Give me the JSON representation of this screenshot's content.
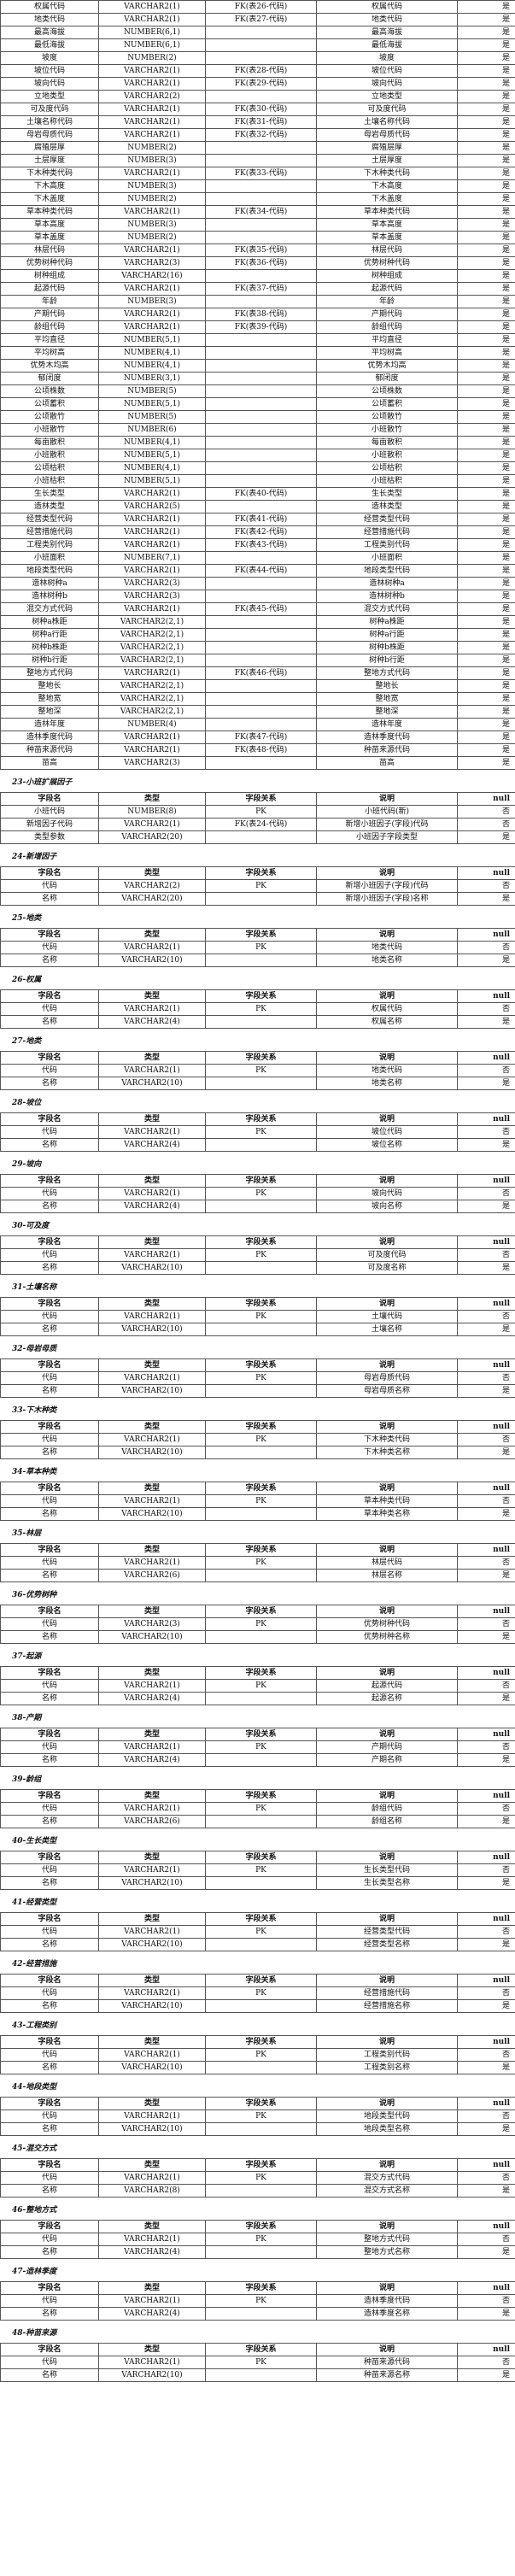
{
  "main_table": {
    "rows": [
      [
        "权属代码",
        "VARCHAR2(1)",
        "FK(表26-代码)",
        "权属代码",
        "是"
      ],
      [
        "地类代码",
        "VARCHAR2(1)",
        "FK(表27-代码)",
        "地类代码",
        "是"
      ],
      [
        "最高海拔",
        "NUMBER(6,1)",
        "",
        "最高海拔",
        "是"
      ],
      [
        "最低海拔",
        "NUMBER(6,1)",
        "",
        "最低海拔",
        "是"
      ],
      [
        "坡度",
        "NUMBER(2)",
        "",
        "坡度",
        "是"
      ],
      [
        "坡位代码",
        "VARCHAR2(1)",
        "FK(表28-代码)",
        "坡位代码",
        "是"
      ],
      [
        "坡向代码",
        "VARCHAR2(1)",
        "FK(表29-代码)",
        "坡向代码",
        "是"
      ],
      [
        "立地类型",
        "VARCHAR2(2)",
        "",
        "立地类型",
        "是"
      ],
      [
        "可及度代码",
        "VARCHAR2(1)",
        "FK(表30-代码)",
        "可及度代码",
        "是"
      ],
      [
        "土壤名称代码",
        "VARCHAR2(1)",
        "FK(表31-代码)",
        "土壤名称代码",
        "是"
      ],
      [
        "母岩母质代码",
        "VARCHAR2(1)",
        "FK(表32-代码)",
        "母岩母质代码",
        "是"
      ],
      [
        "腐殖层厚",
        "NUMBER(2)",
        "",
        "腐殖层厚",
        "是"
      ],
      [
        "土层厚度",
        "NUMBER(3)",
        "",
        "土层厚度",
        "是"
      ],
      [
        "下木种类代码",
        "VARCHAR2(1)",
        "FK(表33-代码)",
        "下木种类代码",
        "是"
      ],
      [
        "下木高度",
        "NUMBER(3)",
        "",
        "下木高度",
        "是"
      ],
      [
        "下木盖度",
        "NUMBER(2)",
        "",
        "下木盖度",
        "是"
      ],
      [
        "草本种类代码",
        "VARCHAR2(1)",
        "FK(表34-代码)",
        "草本种类代码",
        "是"
      ],
      [
        "草本高度",
        "NUMBER(3)",
        "",
        "草本高度",
        "是"
      ],
      [
        "草本盖度",
        "NUMBER(2)",
        "",
        "草本盖度",
        "是"
      ],
      [
        "林层代码",
        "VARCHAR2(1)",
        "FK(表35-代码)",
        "林层代码",
        "是"
      ],
      [
        "优势树种代码",
        "VARCHAR2(3)",
        "FK(表36-代码)",
        "优势树种代码",
        "是"
      ],
      [
        "树种组成",
        "VARCHAR2(16)",
        "",
        "树种组成",
        "是"
      ],
      [
        "起源代码",
        "VARCHAR2(1)",
        "FK(表37-代码)",
        "起源代码",
        "是"
      ],
      [
        "年龄",
        "NUMBER(3)",
        "",
        "年龄",
        "是"
      ],
      [
        "产期代码",
        "VARCHAR2(1)",
        "FK(表38-代码)",
        "产期代码",
        "是"
      ],
      [
        "龄组代码",
        "VARCHAR2(1)",
        "FK(表39-代码)",
        "龄组代码",
        "是"
      ],
      [
        "平均直径",
        "NUMBER(5,1)",
        "",
        "平均直径",
        "是"
      ],
      [
        "平均树高",
        "NUMBER(4,1)",
        "",
        "平均树高",
        "是"
      ],
      [
        "优势木均高",
        "NUMBER(4,1)",
        "",
        "优势木均高",
        "是"
      ],
      [
        "郁闭度",
        "NUMBER(3,1)",
        "",
        "郁闭度",
        "是"
      ],
      [
        "公顷株数",
        "NUMBER(5)",
        "",
        "公顷株数",
        "是"
      ],
      [
        "公顷蓄积",
        "NUMBER(5,1)",
        "",
        "公顷蓄积",
        "是"
      ],
      [
        "公顷散竹",
        "NUMBER(5)",
        "",
        "公顷散竹",
        "是"
      ],
      [
        "小班散竹",
        "NUMBER(6)",
        "",
        "小班散竹",
        "是"
      ],
      [
        "每亩散积",
        "NUMBER(4,1)",
        "",
        "每亩散积",
        "是"
      ],
      [
        "小班散积",
        "NUMBER(5,1)",
        "",
        "小班散积",
        "是"
      ],
      [
        "公顷枯积",
        "NUMBER(4,1)",
        "",
        "公顷枯积",
        "是"
      ],
      [
        "小班枯积",
        "NUMBER(5,1)",
        "",
        "小班枯积",
        "是"
      ],
      [
        "生长类型",
        "VARCHAR2(1)",
        "FK(表40-代码)",
        "生长类型",
        "是"
      ],
      [
        "造林类型",
        "VARCHAR2(5)",
        "",
        "造林类型",
        "是"
      ],
      [
        "经营类型代码",
        "VARCHAR2(1)",
        "FK(表41-代码)",
        "经营类型代码",
        "是"
      ],
      [
        "经营措施代码",
        "VARCHAR2(1)",
        "FK(表42-代码)",
        "经营措施代码",
        "是"
      ],
      [
        "工程类别代码",
        "VARCHAR2(1)",
        "FK(表43-代码)",
        "工程类别代码",
        "是"
      ],
      [
        "小班面积",
        "NUMBER(7,1)",
        "",
        "小班面积",
        "是"
      ],
      [
        "地段类型代码",
        "VARCHAR2(1)",
        "FK(表44-代码)",
        "地段类型代码",
        "是"
      ],
      [
        "造林树种a",
        "VARCHAR2(3)",
        "",
        "造林树种a",
        "是"
      ],
      [
        "造林树种b",
        "VARCHAR2(3)",
        "",
        "造林树种b",
        "是"
      ],
      [
        "混交方式代码",
        "VARCHAR2(1)",
        "FK(表45-代码)",
        "混交方式代码",
        "是"
      ],
      [
        "树种a株距",
        "VARCHAR2(2,1)",
        "",
        "树种a株距",
        "是"
      ],
      [
        "树种a行距",
        "VARCHAR2(2,1)",
        "",
        "树种a行距",
        "是"
      ],
      [
        "树种b株距",
        "VARCHAR2(2,1)",
        "",
        "树种b株距",
        "是"
      ],
      [
        "树种b行距",
        "VARCHAR2(2,1)",
        "",
        "树种b行距",
        "是"
      ],
      [
        "整地方式代码",
        "VARCHAR2(1)",
        "FK(表46-代码)",
        "整地方式代码",
        "是"
      ],
      [
        "整地长",
        "VARCHAR2(2,1)",
        "",
        "整地长",
        "是"
      ],
      [
        "整地宽",
        "VARCHAR2(2,1)",
        "",
        "整地宽",
        "是"
      ],
      [
        "整地深",
        "VARCHAR2(2,1)",
        "",
        "整地深",
        "是"
      ],
      [
        "造林年度",
        "NUMBER(4)",
        "",
        "造林年度",
        "是"
      ],
      [
        "造林季度代码",
        "VARCHAR2(1)",
        "FK(表47-代码)",
        "造林季度代码",
        "是"
      ],
      [
        "种苗来源代码",
        "VARCHAR2(1)",
        "FK(表48-代码)",
        "种苗来源代码",
        "是"
      ],
      [
        "苗高",
        "VARCHAR2(3)",
        "",
        "苗高",
        "是"
      ]
    ]
  },
  "header_labels": [
    "字段名",
    "类型",
    "字段关系",
    "说明",
    "null"
  ],
  "sections": [
    {
      "title": "23-小班扩展因子",
      "rows": [
        [
          "小班代码",
          "NUMBER(8)",
          "PK",
          "小班代码(新)",
          "否"
        ],
        [
          "新增因子代码",
          "VARCHAR2(1)",
          "FK(表24-代码)",
          "新增小班因子(字段)代码",
          "否"
        ],
        [
          "类型参数",
          "VARCHAR2(20)",
          "",
          "小班因子字段类型",
          "是"
        ]
      ]
    },
    {
      "title": "24-新增因子",
      "rows": [
        [
          "代码",
          "VARCHAR2(2)",
          "PK",
          "新增小班因子(字段)代码",
          "否"
        ],
        [
          "名称",
          "VARCHAR2(20)",
          "",
          "新增小班因子(字段)名称",
          "是"
        ]
      ]
    },
    {
      "title": "25-地类",
      "rows": [
        [
          "代码",
          "VARCHAR2(1)",
          "PK",
          "地类代码",
          "否"
        ],
        [
          "名称",
          "VARCHAR2(10)",
          "",
          "地类名称",
          "是"
        ]
      ]
    },
    {
      "title": "26-权属",
      "rows": [
        [
          "代码",
          "VARCHAR2(1)",
          "PK",
          "权属代码",
          "否"
        ],
        [
          "名称",
          "VARCHAR2(4)",
          "",
          "权属名称",
          "是"
        ]
      ]
    },
    {
      "title": "27-地类",
      "rows": [
        [
          "代码",
          "VARCHAR2(1)",
          "PK",
          "地类代码",
          "否"
        ],
        [
          "名称",
          "VARCHAR2(10)",
          "",
          "地类名称",
          "是"
        ]
      ]
    },
    {
      "title": "28-坡位",
      "rows": [
        [
          "代码",
          "VARCHAR2(1)",
          "PK",
          "坡位代码",
          "否"
        ],
        [
          "名称",
          "VARCHAR2(4)",
          "",
          "坡位名称",
          "是"
        ]
      ]
    },
    {
      "title": "29-坡向",
      "rows": [
        [
          "代码",
          "VARCHAR2(1)",
          "PK",
          "坡向代码",
          "否"
        ],
        [
          "名称",
          "VARCHAR2(4)",
          "",
          "坡向名称",
          "是"
        ]
      ]
    },
    {
      "title": "30-可及度",
      "rows": [
        [
          "代码",
          "VARCHAR2(1)",
          "PK",
          "可及度代码",
          "否"
        ],
        [
          "名称",
          "VARCHAR2(10)",
          "",
          "可及度名称",
          "是"
        ]
      ]
    },
    {
      "title": "31-土壤名称",
      "rows": [
        [
          "代码",
          "VARCHAR2(1)",
          "PK",
          "土壤代码",
          "否"
        ],
        [
          "名称",
          "VARCHAR2(10)",
          "",
          "土壤名称",
          "是"
        ]
      ]
    },
    {
      "title": "32-母岩母质",
      "rows": [
        [
          "代码",
          "VARCHAR2(1)",
          "PK",
          "母岩母质代码",
          "否"
        ],
        [
          "名称",
          "VARCHAR2(10)",
          "",
          "母岩母质名称",
          "是"
        ]
      ]
    },
    {
      "title": "33-下木种类",
      "rows": [
        [
          "代码",
          "VARCHAR2(1)",
          "PK",
          "下木种类代码",
          "否"
        ],
        [
          "名称",
          "VARCHAR2(10)",
          "",
          "下木种类名称",
          "是"
        ]
      ]
    },
    {
      "title": "34-草本种类",
      "rows": [
        [
          "代码",
          "VARCHAR2(1)",
          "PK",
          "草本种类代码",
          "否"
        ],
        [
          "名称",
          "VARCHAR2(10)",
          "",
          "草本种类名称",
          "是"
        ]
      ]
    },
    {
      "title": "35-林层",
      "rows": [
        [
          "代码",
          "VARCHAR2(1)",
          "PK",
          "林层代码",
          "否"
        ],
        [
          "名称",
          "VARCHAR2(6)",
          "",
          "林层名称",
          "是"
        ]
      ]
    },
    {
      "title": "36-优势树种",
      "rows": [
        [
          "代码",
          "VARCHAR2(3)",
          "PK",
          "优势树种代码",
          "否"
        ],
        [
          "名称",
          "VARCHAR2(10)",
          "",
          "优势树种名称",
          "是"
        ]
      ]
    },
    {
      "title": "37-起源",
      "rows": [
        [
          "代码",
          "VARCHAR2(1)",
          "PK",
          "起源代码",
          "否"
        ],
        [
          "名称",
          "VARCHAR2(4)",
          "",
          "起源名称",
          "是"
        ]
      ]
    },
    {
      "title": "38-产期",
      "rows": [
        [
          "代码",
          "VARCHAR2(1)",
          "PK",
          "产期代码",
          "否"
        ],
        [
          "名称",
          "VARCHAR2(4)",
          "",
          "产期名称",
          "是"
        ]
      ]
    },
    {
      "title": "39-龄组",
      "rows": [
        [
          "代码",
          "VARCHAR2(1)",
          "PK",
          "龄组代码",
          "否"
        ],
        [
          "名称",
          "VARCHAR2(6)",
          "",
          "龄组名称",
          "是"
        ]
      ]
    },
    {
      "title": "40-生长类型",
      "rows": [
        [
          "代码",
          "VARCHAR2(1)",
          "PK",
          "生长类型代码",
          "否"
        ],
        [
          "名称",
          "VARCHAR2(10)",
          "",
          "生长类型名称",
          "是"
        ]
      ]
    },
    {
      "title": "41-经营类型",
      "rows": [
        [
          "代码",
          "VARCHAR2(1)",
          "PK",
          "经营类型代码",
          "否"
        ],
        [
          "名称",
          "VARCHAR2(10)",
          "",
          "经营类型名称",
          "是"
        ]
      ]
    },
    {
      "title": "42-经营措施",
      "rows": [
        [
          "代码",
          "VARCHAR2(1)",
          "PK",
          "经营措施代码",
          "否"
        ],
        [
          "名称",
          "VARCHAR2(10)",
          "",
          "经营措施名称",
          "是"
        ]
      ]
    },
    {
      "title": "43-工程类别",
      "rows": [
        [
          "代码",
          "VARCHAR2(1)",
          "PK",
          "工程类别代码",
          "否"
        ],
        [
          "名称",
          "VARCHAR2(10)",
          "",
          "工程类别名称",
          "是"
        ]
      ]
    },
    {
      "title": "44-地段类型",
      "rows": [
        [
          "代码",
          "VARCHAR2(1)",
          "PK",
          "地段类型代码",
          "否"
        ],
        [
          "名称",
          "VARCHAR2(10)",
          "",
          "地段类型名称",
          "是"
        ]
      ]
    },
    {
      "title": "45-混交方式",
      "rows": [
        [
          "代码",
          "VARCHAR2(1)",
          "PK",
          "混交方式代码",
          "否"
        ],
        [
          "名称",
          "VARCHAR2(8)",
          "",
          "混交方式名称",
          "是"
        ]
      ]
    },
    {
      "title": "46-整地方式",
      "rows": [
        [
          "代码",
          "VARCHAR2(1)",
          "PK",
          "整地方式代码",
          "否"
        ],
        [
          "名称",
          "VARCHAR2(4)",
          "",
          "整地方式名称",
          "是"
        ]
      ]
    },
    {
      "title": "47-造林季度",
      "rows": [
        [
          "代码",
          "VARCHAR2(1)",
          "PK",
          "造林季度代码",
          "否"
        ],
        [
          "名称",
          "VARCHAR2(4)",
          "",
          "造林季度名称",
          "是"
        ]
      ]
    },
    {
      "title": "48-种苗来源",
      "rows": [
        [
          "代码",
          "VARCHAR2(1)",
          "PK",
          "种苗来源代码",
          "否"
        ],
        [
          "名称",
          "VARCHAR2(10)",
          "",
          "种苗来源名称",
          "是"
        ]
      ]
    }
  ]
}
